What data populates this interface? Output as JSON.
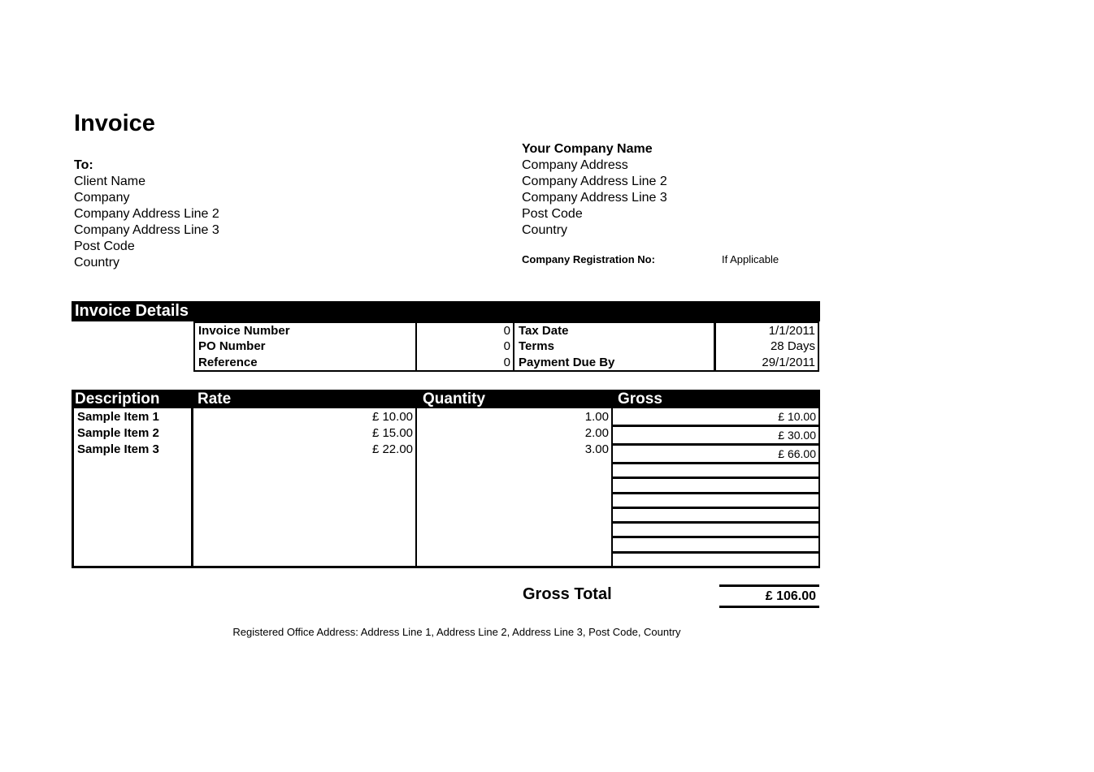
{
  "title": "Invoice",
  "bill_to": {
    "label": "To:",
    "lines": [
      "Client Name",
      "Company",
      "Company Address Line 2",
      "Company Address Line 3",
      "Post Code",
      "Country"
    ]
  },
  "company": {
    "name": "Your Company Name",
    "lines": [
      "Company Address",
      "Company Address Line 2",
      "Company Address Line 3",
      "Post Code",
      "Country"
    ]
  },
  "registration": {
    "label": "Company Registration No:",
    "note": "If Applicable"
  },
  "details": {
    "header": "Invoice Details",
    "rows": [
      {
        "label": "Invoice Number",
        "value": "0",
        "label2": "Tax Date",
        "value2": "1/1/2011"
      },
      {
        "label": "PO Number",
        "value": "0",
        "label2": "Terms",
        "value2": "28 Days"
      },
      {
        "label": "Reference",
        "value": "0",
        "label2": "Payment Due By",
        "value2": "29/1/2011"
      }
    ]
  },
  "items": {
    "headers": [
      "Description",
      "Rate",
      "Quantity",
      "Gross"
    ],
    "rows": [
      {
        "description": "Sample Item 1",
        "rate": "£ 10.00",
        "quantity": "1.00",
        "gross": "£ 10.00"
      },
      {
        "description": "Sample Item 2",
        "rate": "£ 15.00",
        "quantity": "2.00",
        "gross": "£ 30.00"
      },
      {
        "description": "Sample Item 3",
        "rate": "£ 22.00",
        "quantity": "3.00",
        "gross": "£ 66.00"
      }
    ],
    "empty_gross_rows": 7
  },
  "total": {
    "label": "Gross Total",
    "value": "£ 106.00"
  },
  "footer": "Registered Office Address: Address Line 1, Address Line 2, Address Line 3, Post Code, Country",
  "colors": {
    "ink": "#000000",
    "paper": "#ffffff",
    "band_bg": "#000000",
    "band_text": "#ffffff"
  }
}
